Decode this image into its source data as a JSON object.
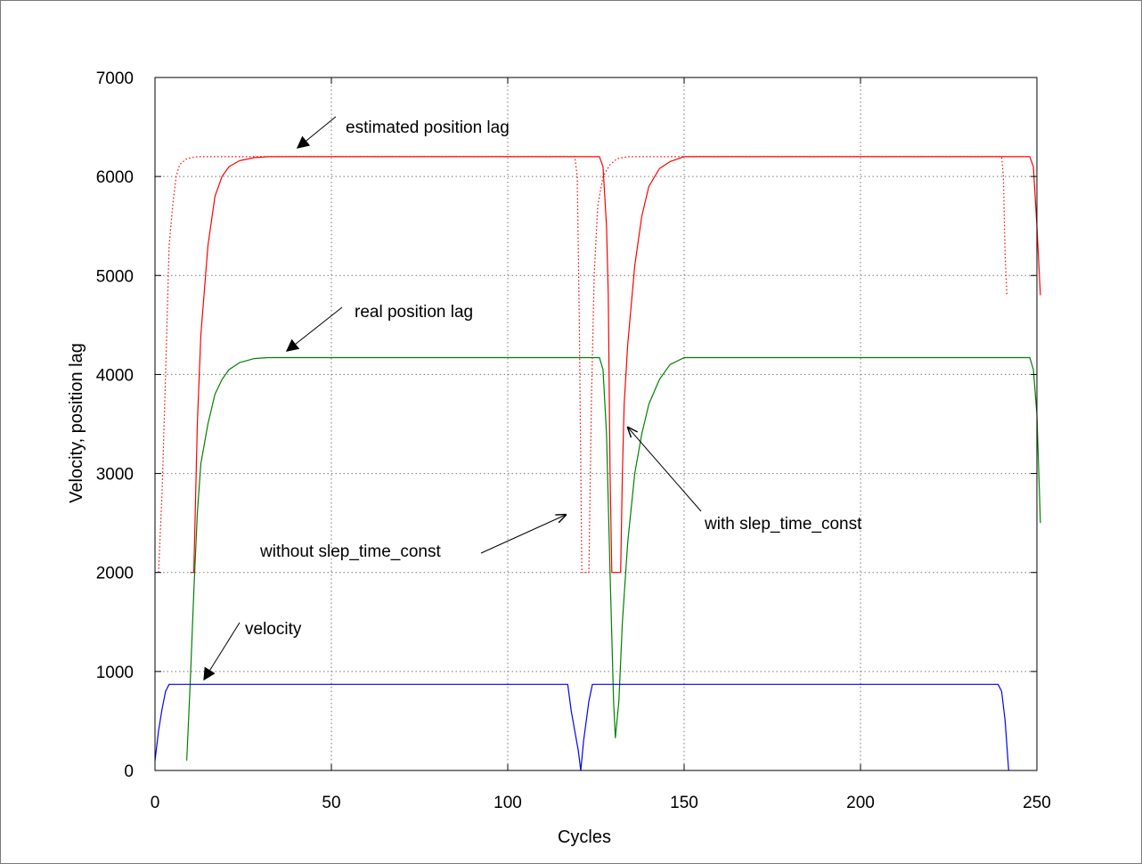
{
  "chart_data": {
    "type": "line",
    "title": "",
    "xlabel": "Cycles",
    "ylabel": "Velocity, position lag",
    "xlim": [
      0,
      250
    ],
    "ylim": [
      0,
      7000
    ],
    "xticks": [
      0,
      50,
      100,
      150,
      200,
      250
    ],
    "yticks": [
      0,
      1000,
      2000,
      3000,
      4000,
      5000,
      6000,
      7000
    ],
    "grid": true,
    "legend": "none",
    "series": [
      {
        "name": "",
        "color": "#ff0000",
        "style": "dotted",
        "points": [
          [
            1,
            2000
          ],
          [
            2,
            2800
          ],
          [
            3,
            4000
          ],
          [
            4,
            5300
          ],
          [
            5,
            5700
          ],
          [
            6,
            6000
          ],
          [
            7,
            6120
          ],
          [
            9,
            6180
          ],
          [
            12,
            6200
          ],
          [
            119,
            6200
          ],
          [
            119.7,
            6000
          ],
          [
            120.3,
            4500
          ],
          [
            121,
            2000
          ],
          [
            123,
            2000
          ],
          [
            123.7,
            3700
          ],
          [
            124.5,
            5000
          ],
          [
            125.5,
            5700
          ],
          [
            127,
            6000
          ],
          [
            129,
            6120
          ],
          [
            131,
            6180
          ],
          [
            134,
            6200
          ],
          [
            240,
            6200
          ],
          [
            240.5,
            6000
          ],
          [
            241,
            5200
          ],
          [
            241.5,
            4800
          ]
        ]
      },
      {
        "name": "",
        "color": "#ff0000",
        "style": "solid",
        "points": [
          [
            10,
            2000
          ],
          [
            11,
            2000
          ],
          [
            12,
            3500
          ],
          [
            13,
            4400
          ],
          [
            15,
            5300
          ],
          [
            17,
            5800
          ],
          [
            19,
            6000
          ],
          [
            21,
            6100
          ],
          [
            24,
            6160
          ],
          [
            28,
            6190
          ],
          [
            32,
            6200
          ],
          [
            126,
            6200
          ],
          [
            127,
            6100
          ],
          [
            128,
            5500
          ],
          [
            128.5,
            4800
          ],
          [
            129,
            3000
          ],
          [
            129.5,
            2000
          ],
          [
            132,
            2000
          ],
          [
            132.5,
            3000
          ],
          [
            133,
            3700
          ],
          [
            134,
            4300
          ],
          [
            136,
            5100
          ],
          [
            138,
            5600
          ],
          [
            140,
            5900
          ],
          [
            143,
            6080
          ],
          [
            146,
            6150
          ],
          [
            150,
            6200
          ],
          [
            248,
            6200
          ],
          [
            249,
            6100
          ],
          [
            250,
            5500
          ],
          [
            251,
            4800
          ]
        ]
      },
      {
        "name": "",
        "color": "#008000",
        "style": "solid",
        "points": [
          [
            9,
            100
          ],
          [
            10,
            900
          ],
          [
            11,
            1800
          ],
          [
            12,
            2600
          ],
          [
            13,
            3100
          ],
          [
            15,
            3500
          ],
          [
            17,
            3800
          ],
          [
            19,
            3950
          ],
          [
            21,
            4050
          ],
          [
            24,
            4120
          ],
          [
            28,
            4160
          ],
          [
            32,
            4170
          ],
          [
            126,
            4170
          ],
          [
            127,
            4050
          ],
          [
            128,
            3400
          ],
          [
            129,
            2000
          ],
          [
            130,
            700
          ],
          [
            130.5,
            330
          ],
          [
            131.5,
            700
          ],
          [
            132.5,
            1500
          ],
          [
            134,
            2300
          ],
          [
            136,
            3000
          ],
          [
            138,
            3400
          ],
          [
            140,
            3700
          ],
          [
            143,
            3950
          ],
          [
            146,
            4100
          ],
          [
            150,
            4170
          ],
          [
            248,
            4170
          ],
          [
            249,
            4050
          ],
          [
            250,
            3600
          ],
          [
            251,
            2500
          ]
        ]
      },
      {
        "name": "",
        "color": "#0000ff",
        "style": "solid",
        "points": [
          [
            0,
            100
          ],
          [
            1,
            400
          ],
          [
            2,
            620
          ],
          [
            3,
            800
          ],
          [
            4,
            870
          ],
          [
            117,
            870
          ],
          [
            118,
            600
          ],
          [
            120,
            200
          ],
          [
            120.7,
            0
          ],
          [
            121.5,
            300
          ],
          [
            123,
            700
          ],
          [
            124,
            870
          ],
          [
            239,
            870
          ],
          [
            240,
            800
          ],
          [
            241,
            500
          ],
          [
            242,
            0
          ]
        ]
      }
    ],
    "annotations": [
      {
        "text": "estimated position lag"
      },
      {
        "text": "real position lag"
      },
      {
        "text": "velocity"
      },
      {
        "text": "without slep_time_const"
      },
      {
        "text": "with slep_time_const"
      }
    ]
  }
}
